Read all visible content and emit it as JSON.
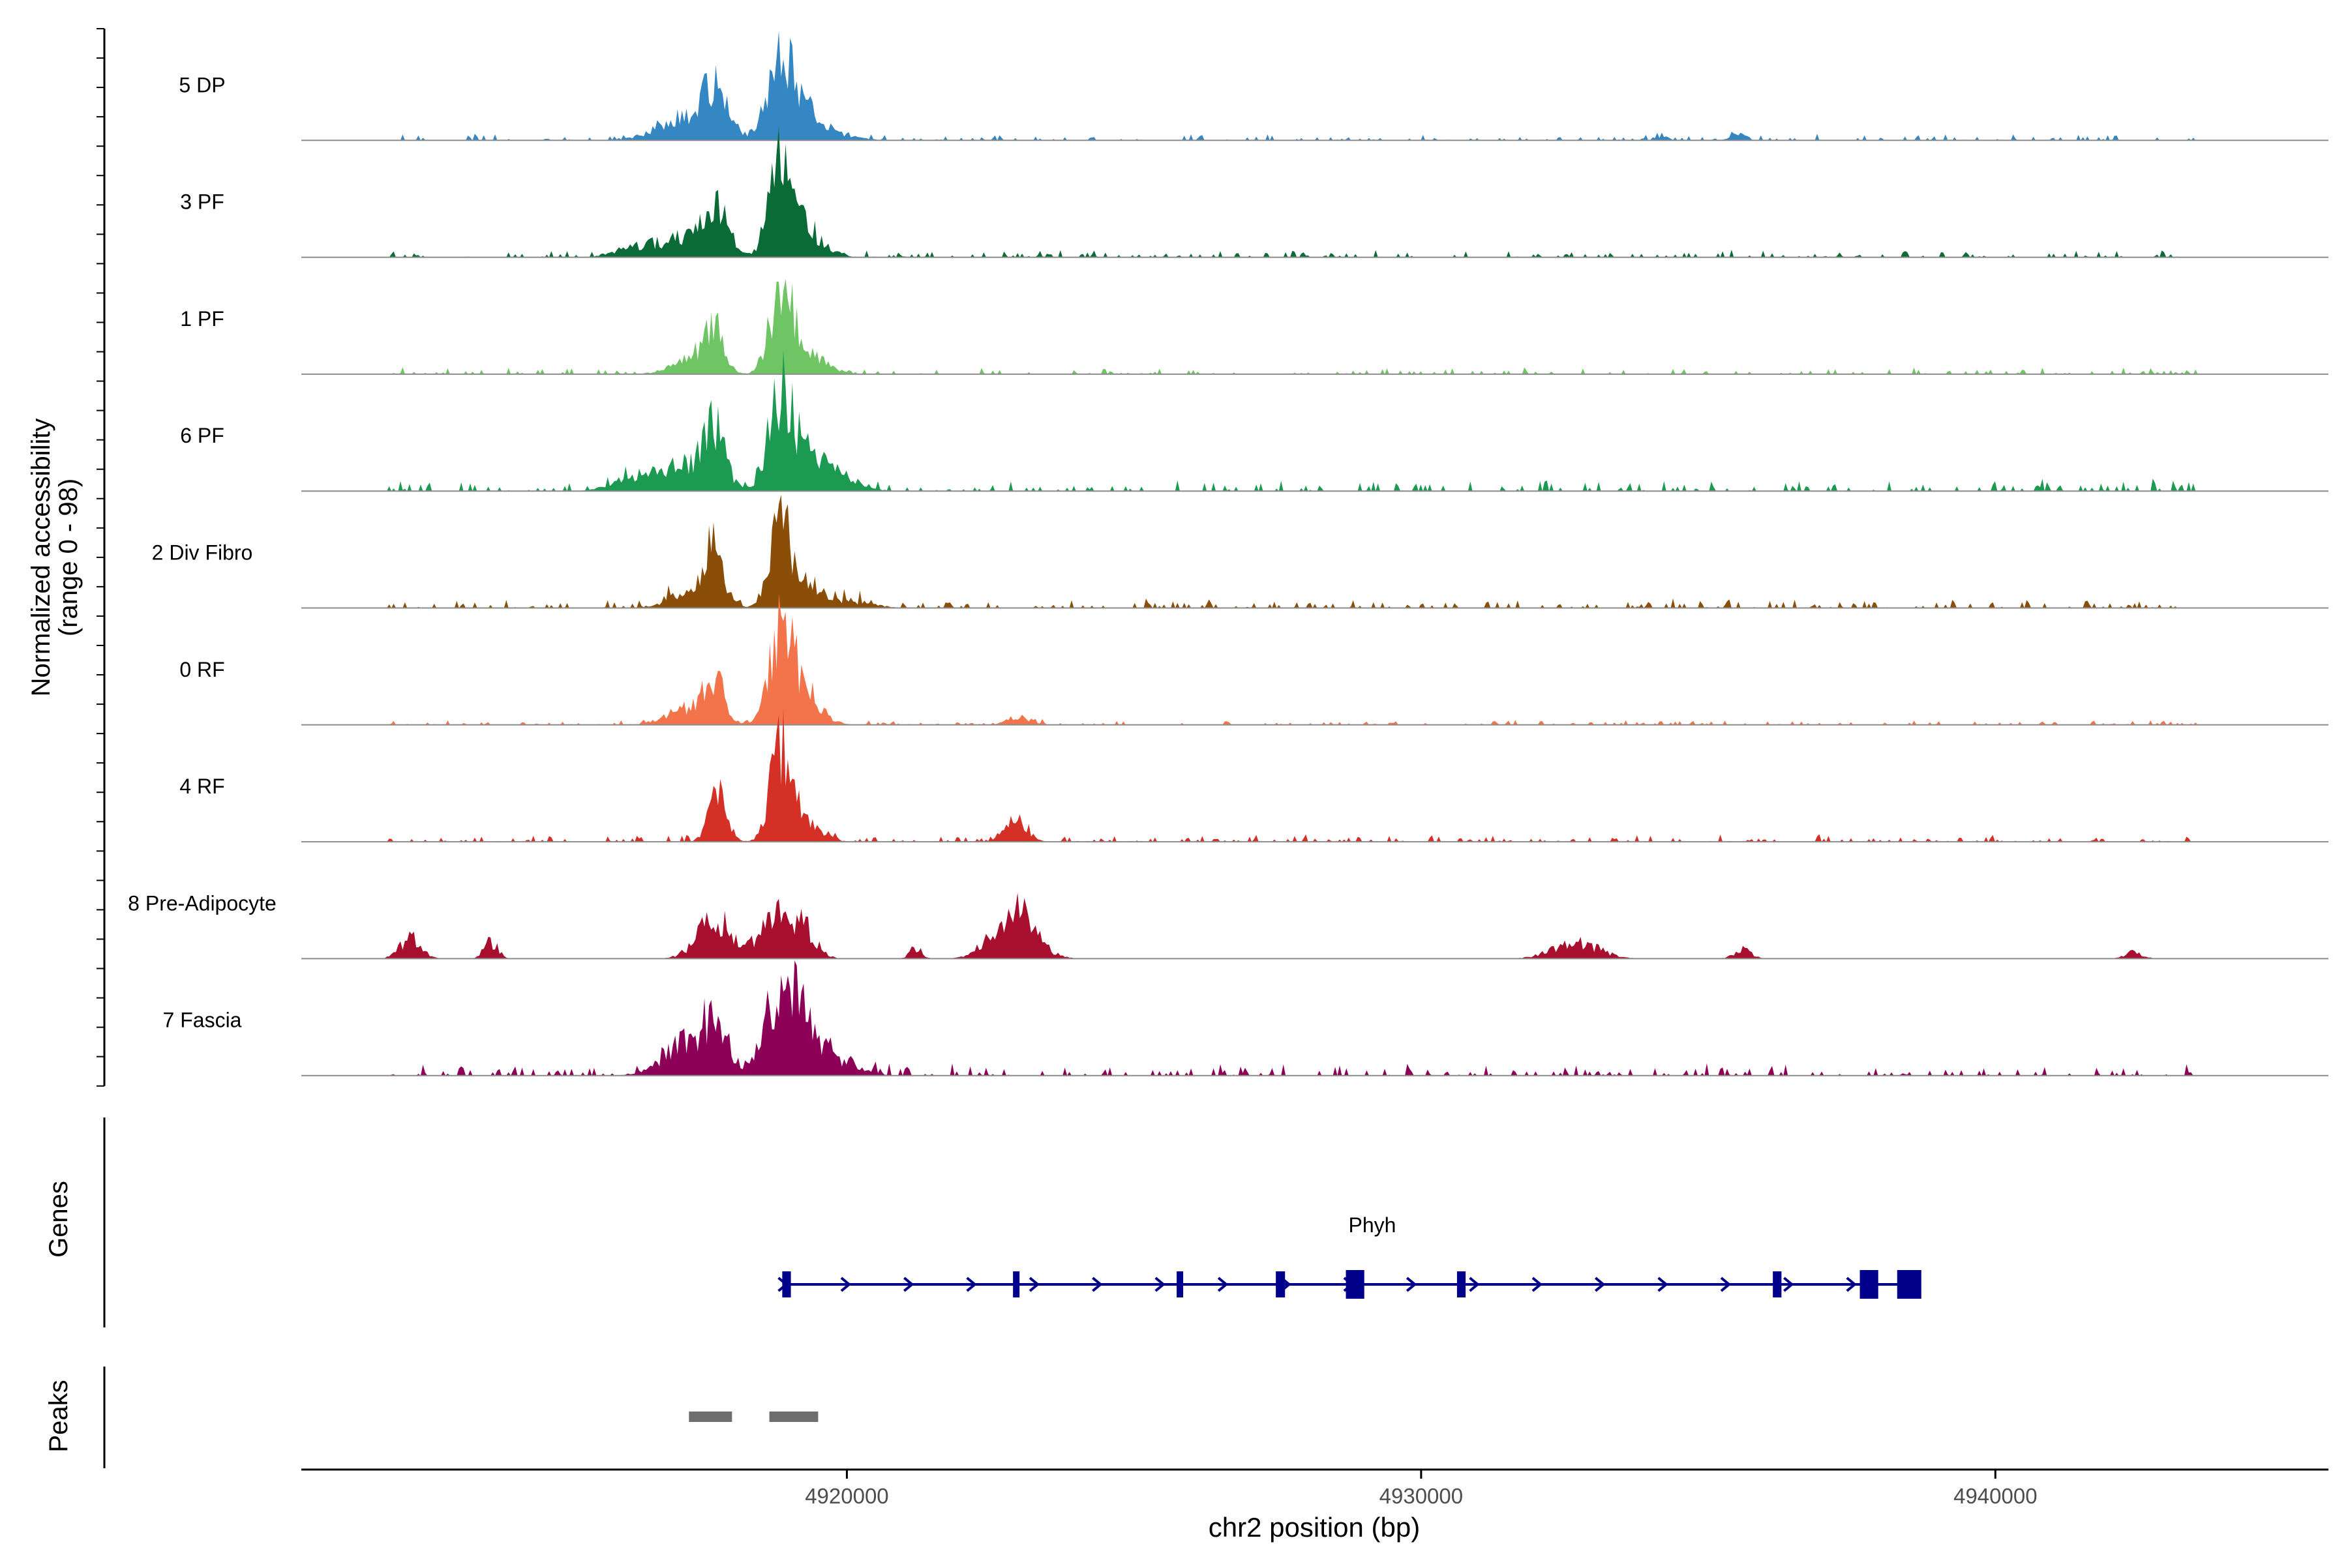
{
  "chart_data": {
    "type": "area",
    "title": "",
    "ylabel_line1": "Normalized accessibility",
    "ylabel_line2": "(range 0 - 98)",
    "xlabel": "chr2 position (bp)",
    "ylim": [
      0,
      98
    ],
    "xlim": [
      4910500,
      4945800
    ],
    "x_ticks": [
      4920000,
      4930000,
      4940000
    ],
    "x_tick_labels": [
      "4920000",
      "4930000",
      "4940000"
    ],
    "genes_label": "Genes",
    "peaks_label": "Peaks",
    "tracks": [
      {
        "name": "5 DP",
        "color": "#3487c3",
        "peaks": [
          [
            4917250,
            18,
            500
          ],
          [
            4917700,
            40,
            190
          ],
          [
            4918850,
            58,
            230
          ],
          [
            4919200,
            22,
            320
          ],
          [
            4919700,
            5,
            400
          ]
        ],
        "noise": [
          [
            4912000,
            4943500,
            3
          ]
        ],
        "bumps": [
          [
            4935500,
            6,
            120
          ],
          [
            4934200,
            4,
            100
          ]
        ]
      },
      {
        "name": "3 PF",
        "color": "#0a6b36",
        "peaks": [
          [
            4917250,
            18,
            450
          ],
          [
            4917700,
            34,
            190
          ],
          [
            4918850,
            82,
            190
          ],
          [
            4919250,
            24,
            320
          ],
          [
            4916300,
            8,
            350
          ]
        ],
        "noise": [
          [
            4912000,
            4943500,
            3
          ]
        ],
        "bumps": []
      },
      {
        "name": "1 PF",
        "color": "#6fc564",
        "peaks": [
          [
            4917250,
            17,
            300
          ],
          [
            4917700,
            38,
            160
          ],
          [
            4918850,
            73,
            190
          ],
          [
            4919300,
            20,
            310
          ]
        ],
        "noise": [
          [
            4912000,
            4943500,
            3
          ]
        ],
        "bumps": []
      },
      {
        "name": "6 PF",
        "color": "#1c9a52",
        "peaks": [
          [
            4916400,
            13,
            400
          ],
          [
            4917250,
            22,
            380
          ],
          [
            4917700,
            47,
            180
          ],
          [
            4918850,
            78,
            210
          ],
          [
            4919350,
            28,
            400
          ],
          [
            4920000,
            8,
            300
          ]
        ],
        "noise": [
          [
            4912000,
            4943500,
            5
          ]
        ],
        "bumps": []
      },
      {
        "name": "2 Div Fibro",
        "color": "#8a4e09",
        "peaks": [
          [
            4917250,
            14,
            350
          ],
          [
            4917700,
            47,
            160
          ],
          [
            4918850,
            72,
            190
          ],
          [
            4919300,
            16,
            280
          ],
          [
            4920000,
            6,
            400
          ]
        ],
        "noise": [
          [
            4912000,
            4943500,
            4
          ]
        ],
        "bumps": []
      },
      {
        "name": "0 RF",
        "color": "#f3744a",
        "peaks": [
          [
            4917200,
            14,
            350
          ],
          [
            4917700,
            40,
            170
          ],
          [
            4918850,
            84,
            190
          ],
          [
            4919250,
            30,
            280
          ],
          [
            4923000,
            7,
            200
          ]
        ],
        "noise": [
          [
            4912000,
            4943500,
            2
          ]
        ],
        "bumps": []
      },
      {
        "name": "4 RF",
        "color": "#d43026",
        "peaks": [
          [
            4917750,
            38,
            160
          ],
          [
            4918850,
            80,
            180
          ],
          [
            4919250,
            16,
            280
          ],
          [
            4922950,
            22,
            180
          ]
        ],
        "noise": [
          [
            4912000,
            4943500,
            3
          ]
        ],
        "bumps": []
      },
      {
        "name": "8 Pre-Adipocyte",
        "color": "#a80f2e",
        "peaks": [
          [
            4917700,
            35,
            300
          ],
          [
            4918800,
            40,
            300
          ],
          [
            4919300,
            18,
            200
          ],
          [
            4922900,
            45,
            350
          ],
          [
            4912400,
            18,
            180
          ],
          [
            4913800,
            15,
            120
          ],
          [
            4921200,
            10,
            100
          ],
          [
            4932700,
            14,
            400
          ],
          [
            4935600,
            8,
            150
          ],
          [
            4942400,
            6,
            150
          ]
        ],
        "noise": [],
        "bumps": []
      },
      {
        "name": "7 Fascia",
        "color": "#8d0058",
        "peaks": [
          [
            4917300,
            30,
            450
          ],
          [
            4917750,
            33,
            170
          ],
          [
            4918900,
            70,
            280
          ],
          [
            4919350,
            25,
            380
          ],
          [
            4920000,
            5,
            350
          ]
        ],
        "noise": [
          [
            4912000,
            4943500,
            5
          ]
        ],
        "bumps": []
      }
    ],
    "gene": {
      "name": "Phyh",
      "color": "#00008b",
      "start": 4918900,
      "end": 4938600,
      "strand": "+",
      "exons": [
        [
          4918950,
          150
        ],
        [
          4922950,
          60
        ],
        [
          4925800,
          110
        ],
        [
          4927550,
          160
        ],
        [
          4928850,
          320
        ],
        [
          4930700,
          150
        ],
        [
          4936200,
          150
        ],
        [
          4937800,
          320
        ],
        [
          4938500,
          420
        ]
      ]
    },
    "peaks_track": {
      "color": "#6e6e6e",
      "regions": [
        [
          4917250,
          4918000
        ],
        [
          4918650,
          4919500
        ]
      ]
    }
  }
}
